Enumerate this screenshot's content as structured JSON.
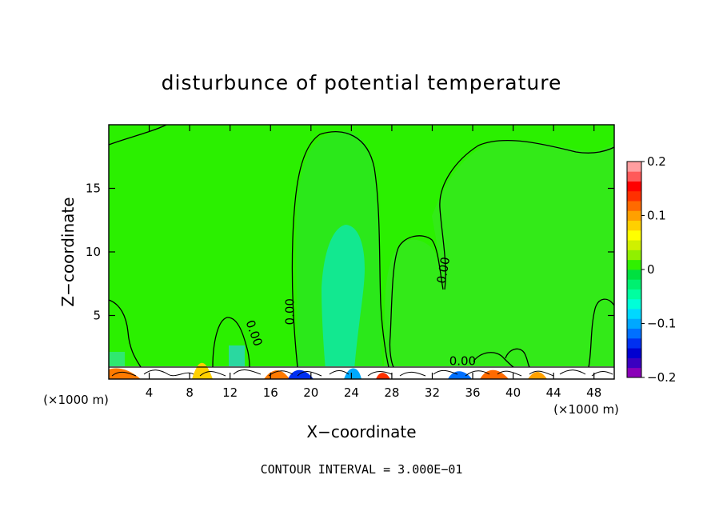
{
  "chart_data": {
    "type": "heatmap",
    "title": "disturbunce of potential temperature",
    "xlabel": "X−coordinate",
    "ylabel": "Z−coordinate",
    "x_unit_left": "(×1000 m)",
    "x_unit_right": "(×1000 m)",
    "xlim": [
      0,
      50
    ],
    "ylim": [
      0,
      20
    ],
    "x_ticks": [
      4,
      8,
      12,
      16,
      20,
      24,
      28,
      32,
      36,
      40,
      44,
      48
    ],
    "x_tick_labels": [
      "4",
      "8",
      "12",
      "16",
      "20",
      "24",
      "28",
      "32",
      "36",
      "40",
      "44",
      "48"
    ],
    "y_ticks": [
      5,
      10,
      15
    ],
    "y_tick_labels": [
      "5",
      "10",
      "15"
    ],
    "colorbar": {
      "min": -0.2,
      "max": 0.2,
      "tick_values": [
        0.2,
        0.1,
        0,
        -0.1,
        -0.2
      ],
      "tick_labels": [
        "0.2",
        "0.1",
        "0",
        "−0.1",
        "−0.2"
      ],
      "colors": [
        "#8a00b8",
        "#3a00c0",
        "#0000d0",
        "#0030f0",
        "#0070ff",
        "#00a8ff",
        "#00d8ff",
        "#00ffd8",
        "#00ffa0",
        "#00f070",
        "#00e040",
        "#30f000",
        "#90f000",
        "#d0f000",
        "#ffff00",
        "#ffd000",
        "#ffa000",
        "#ff6a00",
        "#ff3000",
        "#ff0000",
        "#ff5a5a",
        "#ff9ea0"
      ]
    },
    "contour_labels": [
      {
        "text": "0.00",
        "x": 14,
        "z": 3.5,
        "rotate": 70
      },
      {
        "text": "0.00",
        "x": 18.3,
        "z": 5.3,
        "rotate": -90
      },
      {
        "text": "0.00",
        "x": 33.5,
        "z": 8.5,
        "rotate": -80
      },
      {
        "text": "0.00",
        "x": 35,
        "z": 1.1,
        "rotate": 0
      }
    ],
    "contour_interval_text": "CONTOUR INTERVAL = 3.000E−01"
  }
}
